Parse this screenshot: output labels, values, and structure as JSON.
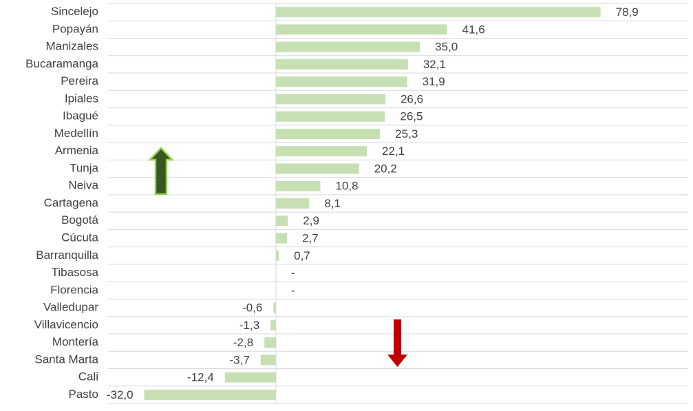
{
  "chart_data": {
    "type": "bar",
    "categories": [
      "Sincelejo",
      "Popayán",
      "Manizales",
      "Bucaramanga",
      "Pereira",
      "Ipiales",
      "Ibagué",
      "Medellín",
      "Armenia",
      "Tunja",
      "Neiva",
      "Cartagena",
      "Bogotá",
      "Cúcuta",
      "Barranquilla",
      "Tibasosa",
      "Florencia",
      "Valledupar",
      "Villavicencio",
      "Montería",
      "Santa Marta",
      "Cali",
      "Pasto"
    ],
    "values": [
      78.9,
      41.6,
      35.0,
      32.1,
      31.9,
      26.6,
      26.5,
      25.3,
      22.1,
      20.2,
      10.8,
      8.1,
      2.9,
      2.7,
      0.7,
      null,
      null,
      -0.6,
      -1.3,
      -2.8,
      -3.7,
      -12.4,
      -32.0
    ],
    "value_labels": [
      "78,9",
      "41,6",
      "35,0",
      "32,1",
      "31,9",
      "26,6",
      "26,5",
      "25,3",
      "22,1",
      "20,2",
      "10,8",
      "8,1",
      "2,9",
      "2,7",
      "0,7",
      "-",
      "-",
      "-0,6",
      "-1,3",
      "-2,8",
      "-3,7",
      "-12,4",
      "-32,0"
    ],
    "color": "#c6e0b4",
    "xlim": [
      -40.8,
      100.2
    ],
    "grid": true
  }
}
